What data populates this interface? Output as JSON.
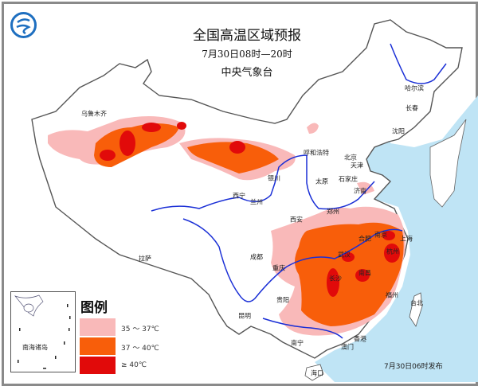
{
  "header": {
    "title": "全国高温区域预报",
    "period": "7月30日08时—20时",
    "agency": "中央气象台"
  },
  "legend": {
    "title": "图例",
    "items": [
      {
        "label": "35 ～ 37℃",
        "color": "#f9b9b9"
      },
      {
        "label": "37 ～ 40℃",
        "color": "#f85e0a"
      },
      {
        "label": "≥ 40℃",
        "color": "#e10a0a"
      }
    ]
  },
  "inset": {
    "label": "南海诸岛"
  },
  "issued": "7月30日06时发布",
  "colors": {
    "sea": "#bfe4f5",
    "river": "#1a2fd6",
    "border": "#555555"
  },
  "cities": [
    {
      "name": "乌鲁木齐"
    },
    {
      "name": "哈尔滨"
    },
    {
      "name": "长春"
    },
    {
      "name": "沈阳"
    },
    {
      "name": "呼和浩特"
    },
    {
      "name": "北京"
    },
    {
      "name": "天津"
    },
    {
      "name": "银川"
    },
    {
      "name": "太原"
    },
    {
      "name": "石家庄"
    },
    {
      "name": "济南"
    },
    {
      "name": "西宁"
    },
    {
      "name": "兰州"
    },
    {
      "name": "郑州"
    },
    {
      "name": "西安"
    },
    {
      "name": "合肥"
    },
    {
      "name": "南京"
    },
    {
      "name": "上海"
    },
    {
      "name": "武汉"
    },
    {
      "name": "杭州"
    },
    {
      "name": "成都"
    },
    {
      "name": "拉萨"
    },
    {
      "name": "重庆"
    },
    {
      "name": "长沙"
    },
    {
      "name": "南昌"
    },
    {
      "name": "贵阳"
    },
    {
      "name": "福州"
    },
    {
      "name": "昆明"
    },
    {
      "name": "台北"
    },
    {
      "name": "南宁"
    },
    {
      "name": "澳门"
    },
    {
      "name": "香港"
    },
    {
      "name": "海口"
    }
  ]
}
